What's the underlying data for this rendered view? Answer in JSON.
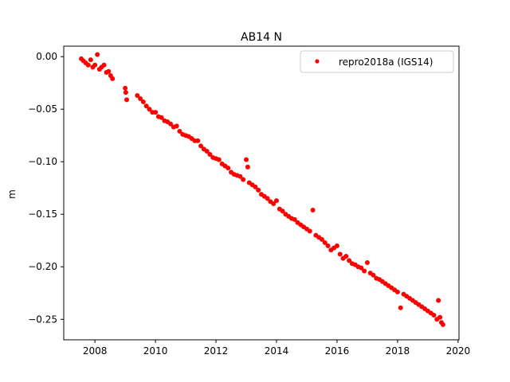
{
  "chart_data": {
    "type": "scatter",
    "title": "AB14 N",
    "xlabel": "",
    "ylabel": "m",
    "xlim": [
      2006.97,
      2020.03
    ],
    "ylim": [
      -0.2695,
      0.01
    ],
    "xticks": [
      2008,
      2010,
      2012,
      2014,
      2016,
      2018,
      2020
    ],
    "xtick_labels": [
      "2008",
      "2010",
      "2012",
      "2014",
      "2016",
      "2018",
      "2020"
    ],
    "yticks": [
      0.0,
      -0.05,
      -0.1,
      -0.15,
      -0.2,
      -0.25
    ],
    "ytick_labels": [
      "0.00",
      "−0.05",
      "−0.10",
      "−0.15",
      "−0.20",
      "−0.25"
    ],
    "grid": false,
    "legend_position": "top-right",
    "series": [
      {
        "name": "repro2018a (IGS14)",
        "color": "#ff0000",
        "marker": "point",
        "x": [
          2007.55,
          2007.62,
          2007.7,
          2007.78,
          2007.86,
          2007.93,
          2008.0,
          2008.08,
          2008.15,
          2008.22,
          2008.3,
          2008.38,
          2008.45,
          2008.52,
          2008.58,
          2009.0,
          2009.05,
          2009.02,
          2009.4,
          2009.5,
          2009.6,
          2009.7,
          2009.8,
          2009.9,
          2010.0,
          2010.1,
          2010.2,
          2010.3,
          2010.4,
          2010.5,
          2010.6,
          2010.7,
          2010.8,
          2010.9,
          2011.0,
          2011.1,
          2011.2,
          2011.3,
          2011.4,
          2011.5,
          2011.6,
          2011.7,
          2011.8,
          2011.9,
          2012.0,
          2012.1,
          2012.2,
          2012.3,
          2012.4,
          2012.5,
          2012.6,
          2012.7,
          2012.8,
          2012.9,
          2013.0,
          2013.05,
          2013.1,
          2013.2,
          2013.3,
          2013.4,
          2013.5,
          2013.6,
          2013.7,
          2013.8,
          2013.9,
          2014.0,
          2014.1,
          2014.2,
          2014.3,
          2014.4,
          2014.5,
          2014.6,
          2014.7,
          2014.8,
          2014.9,
          2015.0,
          2015.1,
          2015.2,
          2015.3,
          2015.4,
          2015.5,
          2015.6,
          2015.7,
          2015.8,
          2015.9,
          2016.0,
          2016.1,
          2016.2,
          2016.3,
          2016.4,
          2016.5,
          2016.6,
          2016.7,
          2016.8,
          2016.9,
          2017.0,
          2017.1,
          2017.2,
          2017.3,
          2017.4,
          2017.5,
          2017.6,
          2017.7,
          2017.8,
          2017.9,
          2018.0,
          2018.1,
          2018.2,
          2018.3,
          2018.4,
          2018.5,
          2018.6,
          2018.7,
          2018.8,
          2018.9,
          2019.0,
          2019.1,
          2019.2,
          2019.3,
          2019.35,
          2019.4,
          2019.45,
          2019.5
        ],
        "y": [
          -0.002,
          -0.004,
          -0.006,
          -0.008,
          -0.003,
          -0.01,
          -0.008,
          0.002,
          -0.012,
          -0.01,
          -0.008,
          -0.015,
          -0.014,
          -0.018,
          -0.021,
          -0.03,
          -0.041,
          -0.034,
          -0.037,
          -0.04,
          -0.043,
          -0.047,
          -0.05,
          -0.053,
          -0.053,
          -0.057,
          -0.058,
          -0.061,
          -0.062,
          -0.064,
          -0.067,
          -0.066,
          -0.071,
          -0.074,
          -0.075,
          -0.076,
          -0.078,
          -0.08,
          -0.08,
          -0.085,
          -0.088,
          -0.09,
          -0.093,
          -0.096,
          -0.097,
          -0.098,
          -0.102,
          -0.104,
          -0.106,
          -0.11,
          -0.112,
          -0.113,
          -0.114,
          -0.117,
          -0.098,
          -0.105,
          -0.12,
          -0.122,
          -0.124,
          -0.127,
          -0.131,
          -0.133,
          -0.135,
          -0.138,
          -0.14,
          -0.137,
          -0.145,
          -0.147,
          -0.15,
          -0.152,
          -0.154,
          -0.155,
          -0.158,
          -0.16,
          -0.162,
          -0.164,
          -0.166,
          -0.146,
          -0.17,
          -0.172,
          -0.174,
          -0.177,
          -0.18,
          -0.184,
          -0.182,
          -0.18,
          -0.188,
          -0.192,
          -0.19,
          -0.194,
          -0.197,
          -0.198,
          -0.2,
          -0.201,
          -0.204,
          -0.196,
          -0.206,
          -0.208,
          -0.211,
          -0.212,
          -0.214,
          -0.216,
          -0.218,
          -0.22,
          -0.222,
          -0.224,
          -0.239,
          -0.226,
          -0.228,
          -0.23,
          -0.232,
          -0.234,
          -0.236,
          -0.238,
          -0.24,
          -0.242,
          -0.244,
          -0.246,
          -0.25,
          -0.232,
          -0.248,
          -0.253,
          -0.255
        ]
      }
    ]
  }
}
